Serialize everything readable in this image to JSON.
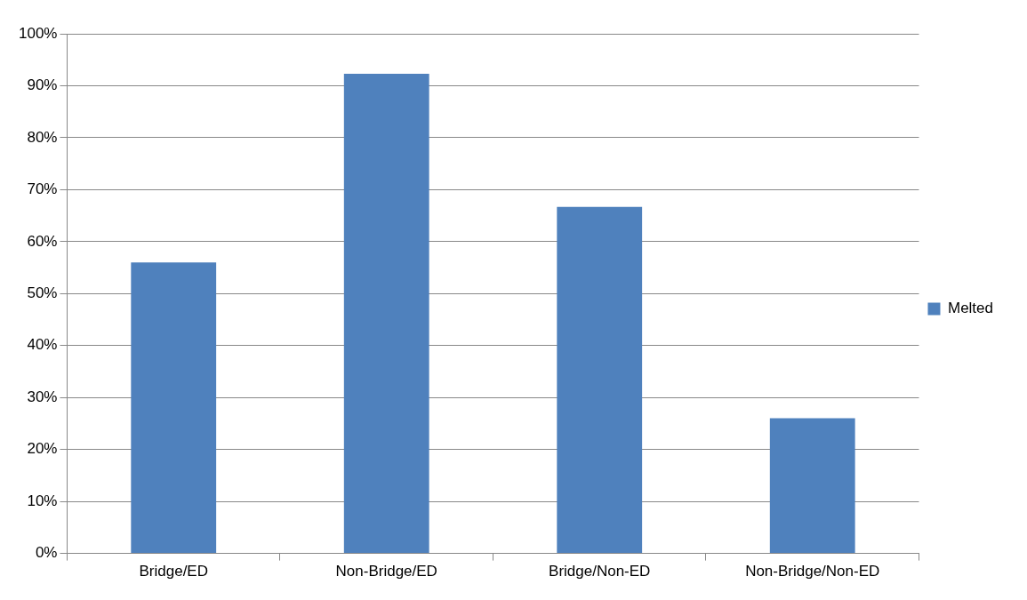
{
  "chart_data": {
    "type": "bar",
    "categories": [
      "Bridge/ED",
      "Non-Bridge/ED",
      "Bridge/Non-ED",
      "Non-Bridge/Non-ED"
    ],
    "series": [
      {
        "name": "Melted",
        "color": "#4f81bd",
        "values": [
          56,
          92.3,
          66.7,
          26
        ]
      }
    ],
    "ylim": [
      0,
      100
    ],
    "yticks": [
      {
        "value": 0,
        "label": "0%"
      },
      {
        "value": 10,
        "label": "10%"
      },
      {
        "value": 20,
        "label": "20%"
      },
      {
        "value": 30,
        "label": "30%"
      },
      {
        "value": 40,
        "label": "40%"
      },
      {
        "value": 50,
        "label": "50%"
      },
      {
        "value": 60,
        "label": "60%"
      },
      {
        "value": 70,
        "label": "70%"
      },
      {
        "value": 80,
        "label": "80%"
      },
      {
        "value": 90,
        "label": "90%"
      },
      {
        "value": 100,
        "label": "100%"
      }
    ],
    "grid": "y",
    "legend": "right"
  }
}
